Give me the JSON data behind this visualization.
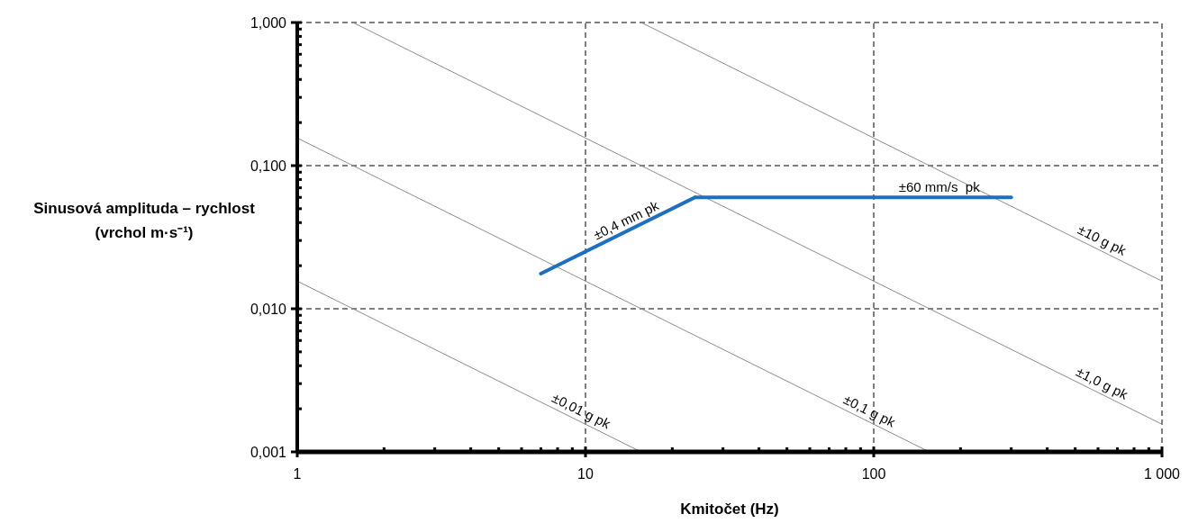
{
  "chart_data": {
    "type": "line",
    "xlabel": "Kmitočet (Hz)",
    "ylabel": "Sinusová amplituda – rychlost\n(vrchol m·s⁻¹)",
    "log": "xy",
    "grid": true,
    "marker": "none",
    "xlim": [
      1,
      1000
    ],
    "ylim": [
      0.001,
      1
    ],
    "xticks": [
      1,
      {
        "value": 2,
        "label": null
      },
      {
        "value": 3,
        "label": null
      },
      {
        "value": 4,
        "label": null
      },
      {
        "value": 5,
        "label": null
      },
      {
        "value": 6,
        "label": null
      },
      {
        "value": 7,
        "label": null
      },
      {
        "value": 8,
        "label": null
      },
      {
        "value": 9,
        "label": null
      },
      10,
      {
        "value": 20,
        "label": null
      },
      {
        "value": 30,
        "label": null
      },
      {
        "value": 40,
        "label": null
      },
      {
        "value": 50,
        "label": null
      },
      {
        "value": 60,
        "label": null
      },
      {
        "value": 70,
        "label": null
      },
      {
        "value": 80,
        "label": null
      },
      {
        "value": 90,
        "label": null
      },
      100,
      {
        "value": 200,
        "label": null
      },
      {
        "value": 300,
        "label": null
      },
      {
        "value": 400,
        "label": null
      },
      {
        "value": 500,
        "label": null
      },
      {
        "value": 600,
        "label": null
      },
      {
        "value": 700,
        "label": null
      },
      {
        "value": 800,
        "label": null
      },
      {
        "value": 900,
        "label": null
      },
      {
        "value": 1000,
        "label": "1 000"
      }
    ],
    "yticks": [
      {
        "value": 0.001,
        "label": "0,001"
      },
      {
        "value": 0.002,
        "label": null
      },
      {
        "value": 0.003,
        "label": null
      },
      {
        "value": 0.004,
        "label": null
      },
      {
        "value": 0.005,
        "label": null
      },
      {
        "value": 0.006,
        "label": null
      },
      {
        "value": 0.007,
        "label": null
      },
      {
        "value": 0.008,
        "label": null
      },
      {
        "value": 0.009,
        "label": null
      },
      {
        "value": 0.01,
        "label": "0,010"
      },
      {
        "value": 0.02,
        "label": null
      },
      {
        "value": 0.03,
        "label": null
      },
      {
        "value": 0.04,
        "label": null
      },
      {
        "value": 0.05,
        "label": null
      },
      {
        "value": 0.06,
        "label": null
      },
      {
        "value": 0.07,
        "label": null
      },
      {
        "value": 0.08,
        "label": null
      },
      {
        "value": 0.09,
        "label": null
      },
      {
        "value": 0.1,
        "label": "0,100"
      },
      {
        "value": 0.2,
        "label": null
      },
      {
        "value": 0.3,
        "label": null
      },
      {
        "value": 0.4,
        "label": null
      },
      {
        "value": 0.5,
        "label": null
      },
      {
        "value": 0.6,
        "label": null
      },
      {
        "value": 0.7,
        "label": null
      },
      {
        "value": 0.8,
        "label": null
      },
      {
        "value": 0.9,
        "label": null
      },
      {
        "value": 1,
        "label": "1,000"
      }
    ],
    "series": [
      {
        "name": "±10 g pk",
        "color": "#8c8c8c",
        "x": [
          15.6,
          1000
        ],
        "values": [
          1,
          0.0156
        ]
      },
      {
        "name": "±1,0 g pk",
        "color": "#8c8c8c",
        "x": [
          1.56,
          1000
        ],
        "values": [
          1,
          0.00156
        ]
      },
      {
        "name": "±0,1 g pk",
        "color": "#8c8c8c",
        "x": [
          1,
          156
        ],
        "values": [
          0.156,
          0.001
        ]
      },
      {
        "name": "±0,01 g pk",
        "color": "#8c8c8c",
        "x": [
          1,
          15.6
        ],
        "values": [
          0.0156,
          0.001
        ]
      },
      {
        "name": "±0,4 mm pk",
        "color": "#1f6fc0",
        "x": [
          7,
          24
        ],
        "values": [
          0.0176,
          0.06
        ]
      },
      {
        "name": "±60 mm/s  pk",
        "color": "#1f6fc0",
        "x": [
          24,
          300
        ],
        "values": [
          0.06,
          0.06
        ]
      }
    ]
  }
}
